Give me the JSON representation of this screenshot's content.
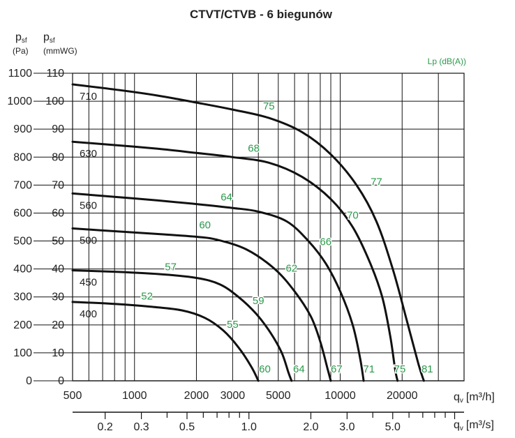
{
  "chart_data": {
    "type": "line",
    "title": "CTVT/CTVB - 6 biegunów",
    "y_left": {
      "symbol": "p",
      "sub": "sf",
      "unit": "(Pa)",
      "ticks": [
        0,
        100,
        200,
        300,
        400,
        500,
        600,
        700,
        800,
        900,
        1000,
        1100
      ]
    },
    "y_right": {
      "symbol": "p",
      "sub": "sf",
      "unit": "(mmWG)",
      "ticks": [
        0,
        10,
        20,
        30,
        40,
        50,
        60,
        70,
        80,
        90,
        100,
        110
      ]
    },
    "x_top": {
      "label": "q",
      "sub": "v",
      "unit": "[m³/h]",
      "scale": "log",
      "range": [
        500,
        40000
      ],
      "tick_labels": [
        "500",
        "1000",
        "2000",
        "3000",
        "5000",
        "10000",
        "20000"
      ],
      "tick_values": [
        500,
        1000,
        2000,
        3000,
        5000,
        10000,
        20000
      ]
    },
    "x_bottom": {
      "label": "q",
      "sub": "v",
      "unit": "[m³/s]",
      "scale": "log",
      "tick_labels": [
        "0.2",
        "0.3",
        "0.5",
        "1.0",
        "2.0",
        "3.0",
        "5.0"
      ],
      "tick_values": [
        0.2,
        0.3,
        0.5,
        1.0,
        2.0,
        3.0,
        5.0
      ]
    },
    "legend_title": "Lp (dB(A))",
    "series": [
      {
        "name": "710",
        "points": [
          [
            500,
            1060
          ],
          [
            800,
            1042
          ],
          [
            1300,
            1020
          ],
          [
            2000,
            995
          ],
          [
            3000,
            970
          ],
          [
            4500,
            940
          ],
          [
            6500,
            890
          ],
          [
            9000,
            810
          ],
          [
            12000,
            700
          ],
          [
            15000,
            570
          ],
          [
            18000,
            400
          ],
          [
            21000,
            220
          ],
          [
            24000,
            60
          ],
          [
            25500,
            0
          ]
        ],
        "dba": [
          {
            "x": 4500,
            "y": 970,
            "label": "75"
          },
          {
            "x": 15000,
            "y": 700,
            "label": "77"
          },
          {
            "x": 26500,
            "y": 30,
            "label": "81"
          }
        ]
      },
      {
        "name": "630",
        "points": [
          [
            500,
            855
          ],
          [
            800,
            843
          ],
          [
            1300,
            830
          ],
          [
            2000,
            815
          ],
          [
            3000,
            800
          ],
          [
            4500,
            780
          ],
          [
            6500,
            730
          ],
          [
            9000,
            650
          ],
          [
            11500,
            550
          ],
          [
            14000,
            420
          ],
          [
            16000,
            300
          ],
          [
            17500,
            160
          ],
          [
            18500,
            40
          ],
          [
            19000,
            0
          ]
        ],
        "dba": [
          {
            "x": 3800,
            "y": 820,
            "label": "68"
          },
          {
            "x": 11500,
            "y": 580,
            "label": "70"
          },
          {
            "x": 19500,
            "y": 30,
            "label": "75"
          }
        ]
      },
      {
        "name": "560",
        "points": [
          [
            500,
            670
          ],
          [
            800,
            658
          ],
          [
            1300,
            645
          ],
          [
            2000,
            632
          ],
          [
            3000,
            618
          ],
          [
            4000,
            605
          ],
          [
            5500,
            570
          ],
          [
            7000,
            500
          ],
          [
            8500,
            420
          ],
          [
            10000,
            320
          ],
          [
            11500,
            200
          ],
          [
            12500,
            80
          ],
          [
            13000,
            0
          ]
        ],
        "dba": [
          {
            "x": 2800,
            "y": 645,
            "label": "64"
          },
          {
            "x": 8500,
            "y": 485,
            "label": "66"
          },
          {
            "x": 13800,
            "y": 30,
            "label": "71"
          }
        ]
      },
      {
        "name": "500",
        "points": [
          [
            500,
            545
          ],
          [
            800,
            535
          ],
          [
            1300,
            525
          ],
          [
            2000,
            515
          ],
          [
            2500,
            505
          ],
          [
            3500,
            470
          ],
          [
            4800,
            400
          ],
          [
            6000,
            320
          ],
          [
            7200,
            230
          ],
          [
            8000,
            140
          ],
          [
            8700,
            40
          ],
          [
            9000,
            0
          ]
        ],
        "dba": [
          {
            "x": 2200,
            "y": 545,
            "label": "60"
          },
          {
            "x": 5800,
            "y": 390,
            "label": "62"
          },
          {
            "x": 9600,
            "y": 30,
            "label": "67"
          }
        ]
      },
      {
        "name": "450",
        "points": [
          [
            500,
            395
          ],
          [
            800,
            390
          ],
          [
            1300,
            382
          ],
          [
            2000,
            368
          ],
          [
            2600,
            345
          ],
          [
            3200,
            300
          ],
          [
            3900,
            240
          ],
          [
            4600,
            170
          ],
          [
            5200,
            100
          ],
          [
            5600,
            30
          ],
          [
            5800,
            0
          ]
        ],
        "dba": [
          {
            "x": 1500,
            "y": 395,
            "label": "57"
          },
          {
            "x": 4000,
            "y": 275,
            "label": "59"
          },
          {
            "x": 6300,
            "y": 30,
            "label": "64"
          }
        ]
      },
      {
        "name": "400",
        "points": [
          [
            500,
            282
          ],
          [
            800,
            275
          ],
          [
            1200,
            265
          ],
          [
            1700,
            252
          ],
          [
            2200,
            225
          ],
          [
            2700,
            180
          ],
          [
            3200,
            120
          ],
          [
            3700,
            50
          ],
          [
            4000,
            0
          ]
        ],
        "dba": [
          {
            "x": 1150,
            "y": 290,
            "label": "52"
          },
          {
            "x": 3000,
            "y": 190,
            "label": "55"
          },
          {
            "x": 4300,
            "y": 30,
            "label": "60"
          }
        ]
      }
    ]
  }
}
